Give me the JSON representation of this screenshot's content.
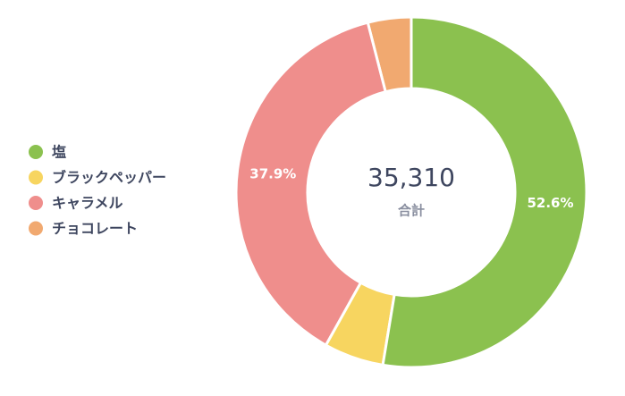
{
  "chart_data": {
    "type": "donut",
    "categories": [
      "塩",
      "ブラックペッパー",
      "キャラメル",
      "チョコレート"
    ],
    "values": [
      52.6,
      5.5,
      37.9,
      4.0
    ],
    "value_labels": [
      "52.6%",
      null,
      "37.9%",
      null
    ],
    "colors": [
      "#8bc14f",
      "#f7d560",
      "#ef8e8c",
      "#f1a970"
    ],
    "center_value": "35,310",
    "center_label": "合計",
    "legend": "left"
  }
}
